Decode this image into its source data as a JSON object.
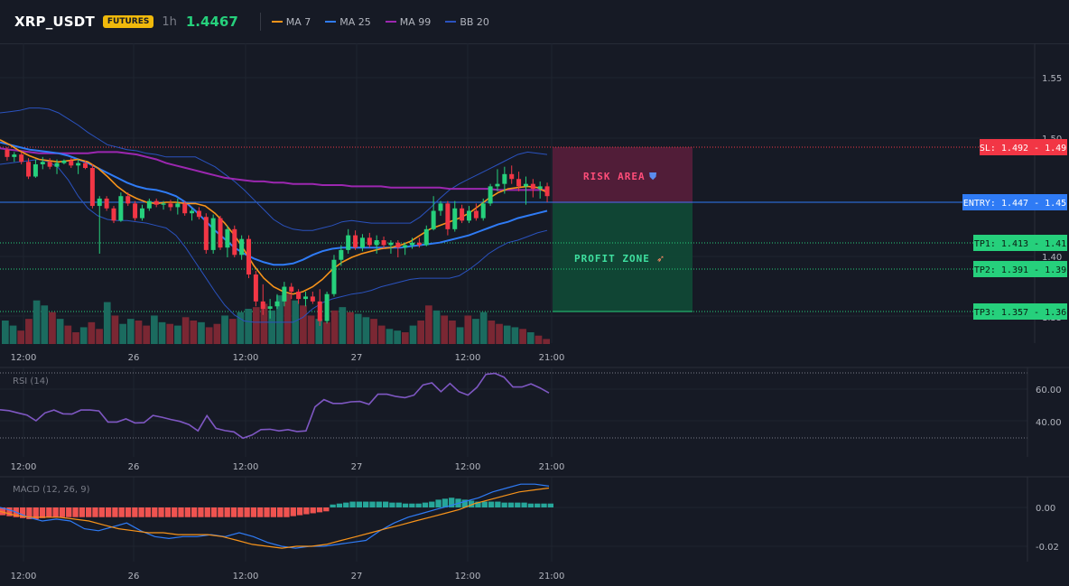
{
  "header": {
    "symbol": "XRP_USDT",
    "badge": "FUTURES",
    "interval": "1h",
    "price": "1.4467",
    "legend": [
      {
        "label": "MA 7",
        "color": "#f7931a"
      },
      {
        "label": "MA 25",
        "color": "#2f7bf5"
      },
      {
        "label": "MA 99",
        "color": "#9c27b0"
      },
      {
        "label": "BB 20",
        "color": "#2a52be"
      }
    ]
  },
  "colors": {
    "up": "#26d07c",
    "down": "#f23645",
    "volume_up": "#1b6b5f",
    "volume_down": "#7a2733",
    "ma7": "#f7931a",
    "ma25": "#2f7bf5",
    "ma99": "#9c27b0",
    "bb": "#2a52be",
    "rsi": "#7e57c2",
    "macd": "#2f7bf5",
    "signal": "#f7931a"
  },
  "chart_data": [
    {
      "type": "candlestick",
      "name": "price",
      "y_axis_ticks": [
        "1.55",
        "1.50",
        "1.40",
        "1.35"
      ],
      "ylim": [
        1.343,
        1.6
      ],
      "x_axis_labels": [
        "12:00",
        "26",
        "12:00",
        "27",
        "12:00",
        "21:00"
      ],
      "series": [
        {
          "name": "MA 7",
          "values": [
            1.498,
            1.494,
            1.489,
            1.485,
            1.482,
            1.481,
            1.48,
            1.481,
            1.482,
            1.48,
            1.475,
            1.468,
            1.46,
            1.454,
            1.45,
            1.447,
            1.446,
            1.447,
            1.447,
            1.446,
            1.446,
            1.444,
            1.438,
            1.43,
            1.42,
            1.408,
            1.395,
            1.385,
            1.378,
            1.374,
            1.372,
            1.374,
            1.378,
            1.384,
            1.392,
            1.398,
            1.402,
            1.405,
            1.407,
            1.409,
            1.41,
            1.412,
            1.415,
            1.42,
            1.425,
            1.428,
            1.431,
            1.434,
            1.438,
            1.444,
            1.45,
            1.455,
            1.458,
            1.459,
            1.46,
            1.459,
            1.455
          ]
        },
        {
          "name": "MA 25",
          "values": [
            1.496,
            1.494,
            1.492,
            1.49,
            1.489,
            1.488,
            1.487,
            1.485,
            1.482,
            1.479,
            1.475,
            1.471,
            1.467,
            1.463,
            1.46,
            1.458,
            1.457,
            1.455,
            1.452,
            1.447,
            1.44,
            1.432,
            1.424,
            1.417,
            1.41,
            1.405,
            1.401,
            1.398,
            1.396,
            1.396,
            1.397,
            1.4,
            1.404,
            1.407,
            1.409,
            1.41,
            1.41,
            1.41,
            1.41,
            1.41,
            1.41,
            1.41,
            1.411,
            1.412,
            1.413,
            1.414,
            1.416,
            1.418,
            1.42,
            1.423,
            1.426,
            1.429,
            1.431,
            1.434,
            1.436,
            1.438,
            1.44
          ]
        },
        {
          "name": "MA 99",
          "values": [
            1.491,
            1.49,
            1.489,
            1.488,
            1.487,
            1.487,
            1.487,
            1.487,
            1.487,
            1.487,
            1.488,
            1.488,
            1.488,
            1.487,
            1.486,
            1.484,
            1.482,
            1.479,
            1.477,
            1.475,
            1.473,
            1.471,
            1.469,
            1.467,
            1.466,
            1.465,
            1.464,
            1.464,
            1.463,
            1.463,
            1.462,
            1.462,
            1.462,
            1.461,
            1.461,
            1.461,
            1.46,
            1.46,
            1.46,
            1.46,
            1.459,
            1.459,
            1.459,
            1.459,
            1.459,
            1.459,
            1.458,
            1.458,
            1.458,
            1.458,
            1.458,
            1.457,
            1.457,
            1.457,
            1.457,
            1.457,
            1.457
          ]
        },
        {
          "name": "BB 20 upper",
          "values": [
            1.52,
            1.521,
            1.522,
            1.524,
            1.524,
            1.523,
            1.52,
            1.515,
            1.51,
            1.504,
            1.499,
            1.494,
            1.492,
            1.49,
            1.489,
            1.487,
            1.486,
            1.484,
            1.484,
            1.484,
            1.484,
            1.48,
            1.476,
            1.47,
            1.464,
            1.457,
            1.449,
            1.441,
            1.433,
            1.428,
            1.425,
            1.424,
            1.424,
            1.426,
            1.428,
            1.431,
            1.432,
            1.431,
            1.43,
            1.43,
            1.43,
            1.43,
            1.43,
            1.435,
            1.442,
            1.45,
            1.457,
            1.462,
            1.466,
            1.47,
            1.474,
            1.478,
            1.482,
            1.486,
            1.488,
            1.487,
            1.486
          ]
        },
        {
          "name": "BB 20 lower",
          "values": [
            1.478,
            1.479,
            1.48,
            1.481,
            1.482,
            1.48,
            1.475,
            1.465,
            1.452,
            1.442,
            1.436,
            1.433,
            1.432,
            1.432,
            1.431,
            1.43,
            1.428,
            1.426,
            1.42,
            1.41,
            1.398,
            1.386,
            1.374,
            1.363,
            1.355,
            1.35,
            1.349,
            1.349,
            1.349,
            1.349,
            1.349,
            1.353,
            1.36,
            1.365,
            1.368,
            1.37,
            1.372,
            1.373,
            1.375,
            1.378,
            1.38,
            1.382,
            1.384,
            1.385,
            1.385,
            1.385,
            1.385,
            1.387,
            1.392,
            1.398,
            1.405,
            1.41,
            1.414,
            1.416,
            1.419,
            1.422,
            1.424
          ]
        }
      ],
      "candles": [
        [
          1.49,
          1.492,
          1.481,
          1.484
        ],
        [
          1.484,
          1.488,
          1.48,
          1.486
        ],
        [
          1.486,
          1.488,
          1.478,
          1.48
        ],
        [
          1.48,
          1.483,
          1.466,
          1.468
        ],
        [
          1.468,
          1.482,
          1.467,
          1.478
        ],
        [
          1.478,
          1.484,
          1.474,
          1.48
        ],
        [
          1.48,
          1.483,
          1.474,
          1.476
        ],
        [
          1.476,
          1.482,
          1.47,
          1.479
        ],
        [
          1.479,
          1.482,
          1.478,
          1.481
        ],
        [
          1.481,
          1.483,
          1.475,
          1.477
        ],
        [
          1.477,
          1.482,
          1.47,
          1.479
        ],
        [
          1.479,
          1.481,
          1.474,
          1.475
        ],
        [
          1.475,
          1.478,
          1.442,
          1.444
        ],
        [
          1.444,
          1.452,
          1.405,
          1.45
        ],
        [
          1.45,
          1.452,
          1.44,
          1.442
        ],
        [
          1.442,
          1.444,
          1.43,
          1.432
        ],
        [
          1.432,
          1.455,
          1.431,
          1.452
        ],
        [
          1.452,
          1.455,
          1.444,
          1.446
        ],
        [
          1.446,
          1.448,
          1.432,
          1.434
        ],
        [
          1.434,
          1.445,
          1.432,
          1.442
        ],
        [
          1.442,
          1.45,
          1.44,
          1.448
        ],
        [
          1.448,
          1.45,
          1.443,
          1.445
        ],
        [
          1.445,
          1.448,
          1.441,
          1.446
        ],
        [
          1.446,
          1.449,
          1.44,
          1.443
        ],
        [
          1.443,
          1.45,
          1.437,
          1.446
        ],
        [
          1.446,
          1.448,
          1.436,
          1.438
        ],
        [
          1.438,
          1.442,
          1.432,
          1.44
        ],
        [
          1.44,
          1.443,
          1.433,
          1.435
        ],
        [
          1.435,
          1.438,
          1.405,
          1.408
        ],
        [
          1.408,
          1.437,
          1.405,
          1.434
        ],
        [
          1.434,
          1.436,
          1.408,
          1.41
        ],
        [
          1.41,
          1.428,
          1.402,
          1.425
        ],
        [
          1.425,
          1.428,
          1.402,
          1.404
        ],
        [
          1.404,
          1.42,
          1.4,
          1.417
        ],
        [
          1.417,
          1.42,
          1.385,
          1.388
        ],
        [
          1.388,
          1.391,
          1.362,
          1.366
        ],
        [
          1.366,
          1.38,
          1.355,
          1.36
        ],
        [
          1.36,
          1.368,
          1.352,
          1.362
        ],
        [
          1.362,
          1.372,
          1.36,
          1.366
        ],
        [
          1.366,
          1.382,
          1.362,
          1.378
        ],
        [
          1.378,
          1.381,
          1.368,
          1.374
        ],
        [
          1.374,
          1.376,
          1.364,
          1.368
        ],
        [
          1.368,
          1.374,
          1.362,
          1.37
        ],
        [
          1.37,
          1.374,
          1.364,
          1.366
        ],
        [
          1.366,
          1.376,
          1.346,
          1.35
        ],
        [
          1.35,
          1.374,
          1.348,
          1.372
        ],
        [
          1.372,
          1.404,
          1.37,
          1.4
        ],
        [
          1.4,
          1.412,
          1.395,
          1.408
        ],
        [
          1.408,
          1.425,
          1.405,
          1.42
        ],
        [
          1.42,
          1.424,
          1.408,
          1.41
        ],
        [
          1.41,
          1.421,
          1.407,
          1.418
        ],
        [
          1.418,
          1.422,
          1.41,
          1.412
        ],
        [
          1.412,
          1.42,
          1.405,
          1.416
        ],
        [
          1.416,
          1.419,
          1.409,
          1.412
        ],
        [
          1.412,
          1.416,
          1.405,
          1.414
        ],
        [
          1.414,
          1.416,
          1.402,
          1.41
        ],
        [
          1.41,
          1.414,
          1.404,
          1.412
        ],
        [
          1.412,
          1.418,
          1.409,
          1.414
        ],
        [
          1.414,
          1.418,
          1.41,
          1.412
        ],
        [
          1.412,
          1.428,
          1.411,
          1.425
        ],
        [
          1.425,
          1.452,
          1.424,
          1.44
        ],
        [
          1.44,
          1.448,
          1.436,
          1.446
        ],
        [
          1.446,
          1.448,
          1.42,
          1.425
        ],
        [
          1.425,
          1.448,
          1.423,
          1.442
        ],
        [
          1.442,
          1.445,
          1.43,
          1.432
        ],
        [
          1.432,
          1.444,
          1.43,
          1.44
        ],
        [
          1.44,
          1.446,
          1.432,
          1.434
        ],
        [
          1.434,
          1.45,
          1.432,
          1.446
        ],
        [
          1.446,
          1.462,
          1.444,
          1.46
        ],
        [
          1.46,
          1.474,
          1.456,
          1.462
        ],
        [
          1.462,
          1.476,
          1.454,
          1.47
        ],
        [
          1.47,
          1.477,
          1.462,
          1.466
        ],
        [
          1.466,
          1.472,
          1.456,
          1.46
        ],
        [
          1.46,
          1.468,
          1.445,
          1.462
        ],
        [
          1.462,
          1.466,
          1.451,
          1.458
        ],
        [
          1.458,
          1.464,
          1.45,
          1.46
        ],
        [
          1.46,
          1.463,
          1.447,
          1.452
        ]
      ]
    },
    {
      "type": "bar",
      "name": "volume",
      "values": [
        28,
        22,
        16,
        30,
        52,
        46,
        38,
        30,
        22,
        14,
        20,
        26,
        18,
        50,
        34,
        24,
        30,
        28,
        22,
        34,
        26,
        24,
        22,
        32,
        28,
        26,
        20,
        24,
        34,
        30,
        38,
        42,
        44,
        48,
        40,
        58,
        60,
        52,
        46,
        34,
        30,
        26,
        40,
        44,
        38,
        36,
        32,
        30,
        22,
        18,
        16,
        14,
        22,
        28,
        46,
        40,
        34,
        28,
        20,
        34,
        30,
        38,
        28,
        24,
        22,
        20,
        18,
        14,
        10,
        6
      ]
    },
    {
      "type": "line",
      "name": "RSI (14)",
      "y_axis_ticks": [
        "60.00",
        "40.00"
      ],
      "values": [
        47.0,
        46.4,
        45.0,
        43.6,
        40.0,
        45.0,
        46.8,
        44.4,
        44.2,
        46.8,
        46.8,
        46.2,
        39.2,
        39.2,
        41.2,
        38.6,
        38.8,
        43.4,
        42.2,
        40.8,
        39.6,
        37.6,
        33.6,
        43.2,
        35.2,
        33.8,
        33.0,
        29.0,
        31.0,
        34.4,
        34.6,
        33.6,
        34.4,
        33.2,
        33.6,
        48.8,
        53.4,
        51.0,
        51.0,
        52.0,
        52.2,
        50.4,
        56.8,
        56.8,
        55.4,
        54.6,
        56.2,
        62.6,
        64.0,
        58.4,
        63.6,
        58.4,
        56.2,
        61.2,
        69.4,
        70.0,
        67.6,
        61.4,
        61.4,
        63.4,
        60.8,
        57.6
      ]
    },
    {
      "type": "bar",
      "name": "MACD (12, 26, 9)",
      "y_axis_ticks": [
        "0.00",
        "-0.02"
      ],
      "histogram": [
        -0.004,
        -0.0045,
        -0.005,
        -0.0055,
        -0.006,
        -0.006,
        -0.0055,
        -0.005,
        -0.005,
        -0.005,
        -0.005,
        -0.005,
        -0.005,
        -0.005,
        -0.005,
        -0.005,
        -0.005,
        -0.005,
        -0.005,
        -0.005,
        -0.005,
        -0.005,
        -0.005,
        -0.005,
        -0.005,
        -0.005,
        -0.005,
        -0.005,
        -0.005,
        -0.005,
        -0.005,
        -0.005,
        -0.005,
        -0.005,
        -0.005,
        -0.005,
        -0.005,
        -0.005,
        -0.005,
        -0.005,
        -0.005,
        -0.005,
        -0.005,
        -0.005,
        -0.0045,
        -0.004,
        -0.0035,
        -0.003,
        -0.0025,
        -0.002,
        0.0015,
        0.002,
        0.0025,
        0.003,
        0.003,
        0.003,
        0.003,
        0.003,
        0.003,
        0.0025,
        0.0025,
        0.002,
        0.002,
        0.002,
        0.0025,
        0.003,
        0.004,
        0.0045,
        0.005,
        0.0045,
        0.004,
        0.0035,
        0.003,
        0.003,
        0.003,
        0.003,
        0.0025,
        0.0025,
        0.0025,
        0.0025,
        0.002,
        0.002,
        0.002,
        0.002
      ],
      "series": [
        {
          "name": "MACD",
          "values": [
            0.0,
            -0.002,
            -0.005,
            -0.007,
            -0.006,
            -0.007,
            -0.011,
            -0.012,
            -0.01,
            -0.008,
            -0.012,
            -0.015,
            -0.016,
            -0.015,
            -0.015,
            -0.014,
            -0.015,
            -0.013,
            -0.015,
            -0.018,
            -0.02,
            -0.021,
            -0.02,
            -0.02,
            -0.019,
            -0.018,
            -0.017,
            -0.012,
            -0.008,
            -0.005,
            -0.003,
            -0.001,
            0.001,
            0.003,
            0.005,
            0.008,
            0.01,
            0.012,
            0.012,
            0.011
          ]
        },
        {
          "name": "Signal",
          "values": [
            -0.002,
            -0.004,
            -0.005,
            -0.005,
            -0.005,
            -0.006,
            -0.007,
            -0.009,
            -0.011,
            -0.012,
            -0.013,
            -0.013,
            -0.014,
            -0.014,
            -0.014,
            -0.015,
            -0.017,
            -0.019,
            -0.02,
            -0.021,
            -0.02,
            -0.02,
            -0.019,
            -0.017,
            -0.015,
            -0.013,
            -0.011,
            -0.009,
            -0.007,
            -0.005,
            -0.003,
            -0.001,
            0.002,
            0.004,
            0.006,
            0.008,
            0.009,
            0.01
          ]
        }
      ]
    }
  ],
  "trade": {
    "sl_label": "SL: 1.492 - 1.49",
    "entry_label": "ENTRY: 1.447 - 1.45",
    "tp1_label": "TP1: 1.413 - 1.41",
    "tp2_label": "TP2: 1.391 - 1.39",
    "tp3_label": "TP3: 1.357 - 1.36",
    "risk_label": "RISK AREA",
    "profit_label": "PROFIT ZONE",
    "sl": 1.492,
    "entry": 1.447,
    "tp1": 1.413,
    "tp2": 1.391,
    "tp3": 1.357
  }
}
